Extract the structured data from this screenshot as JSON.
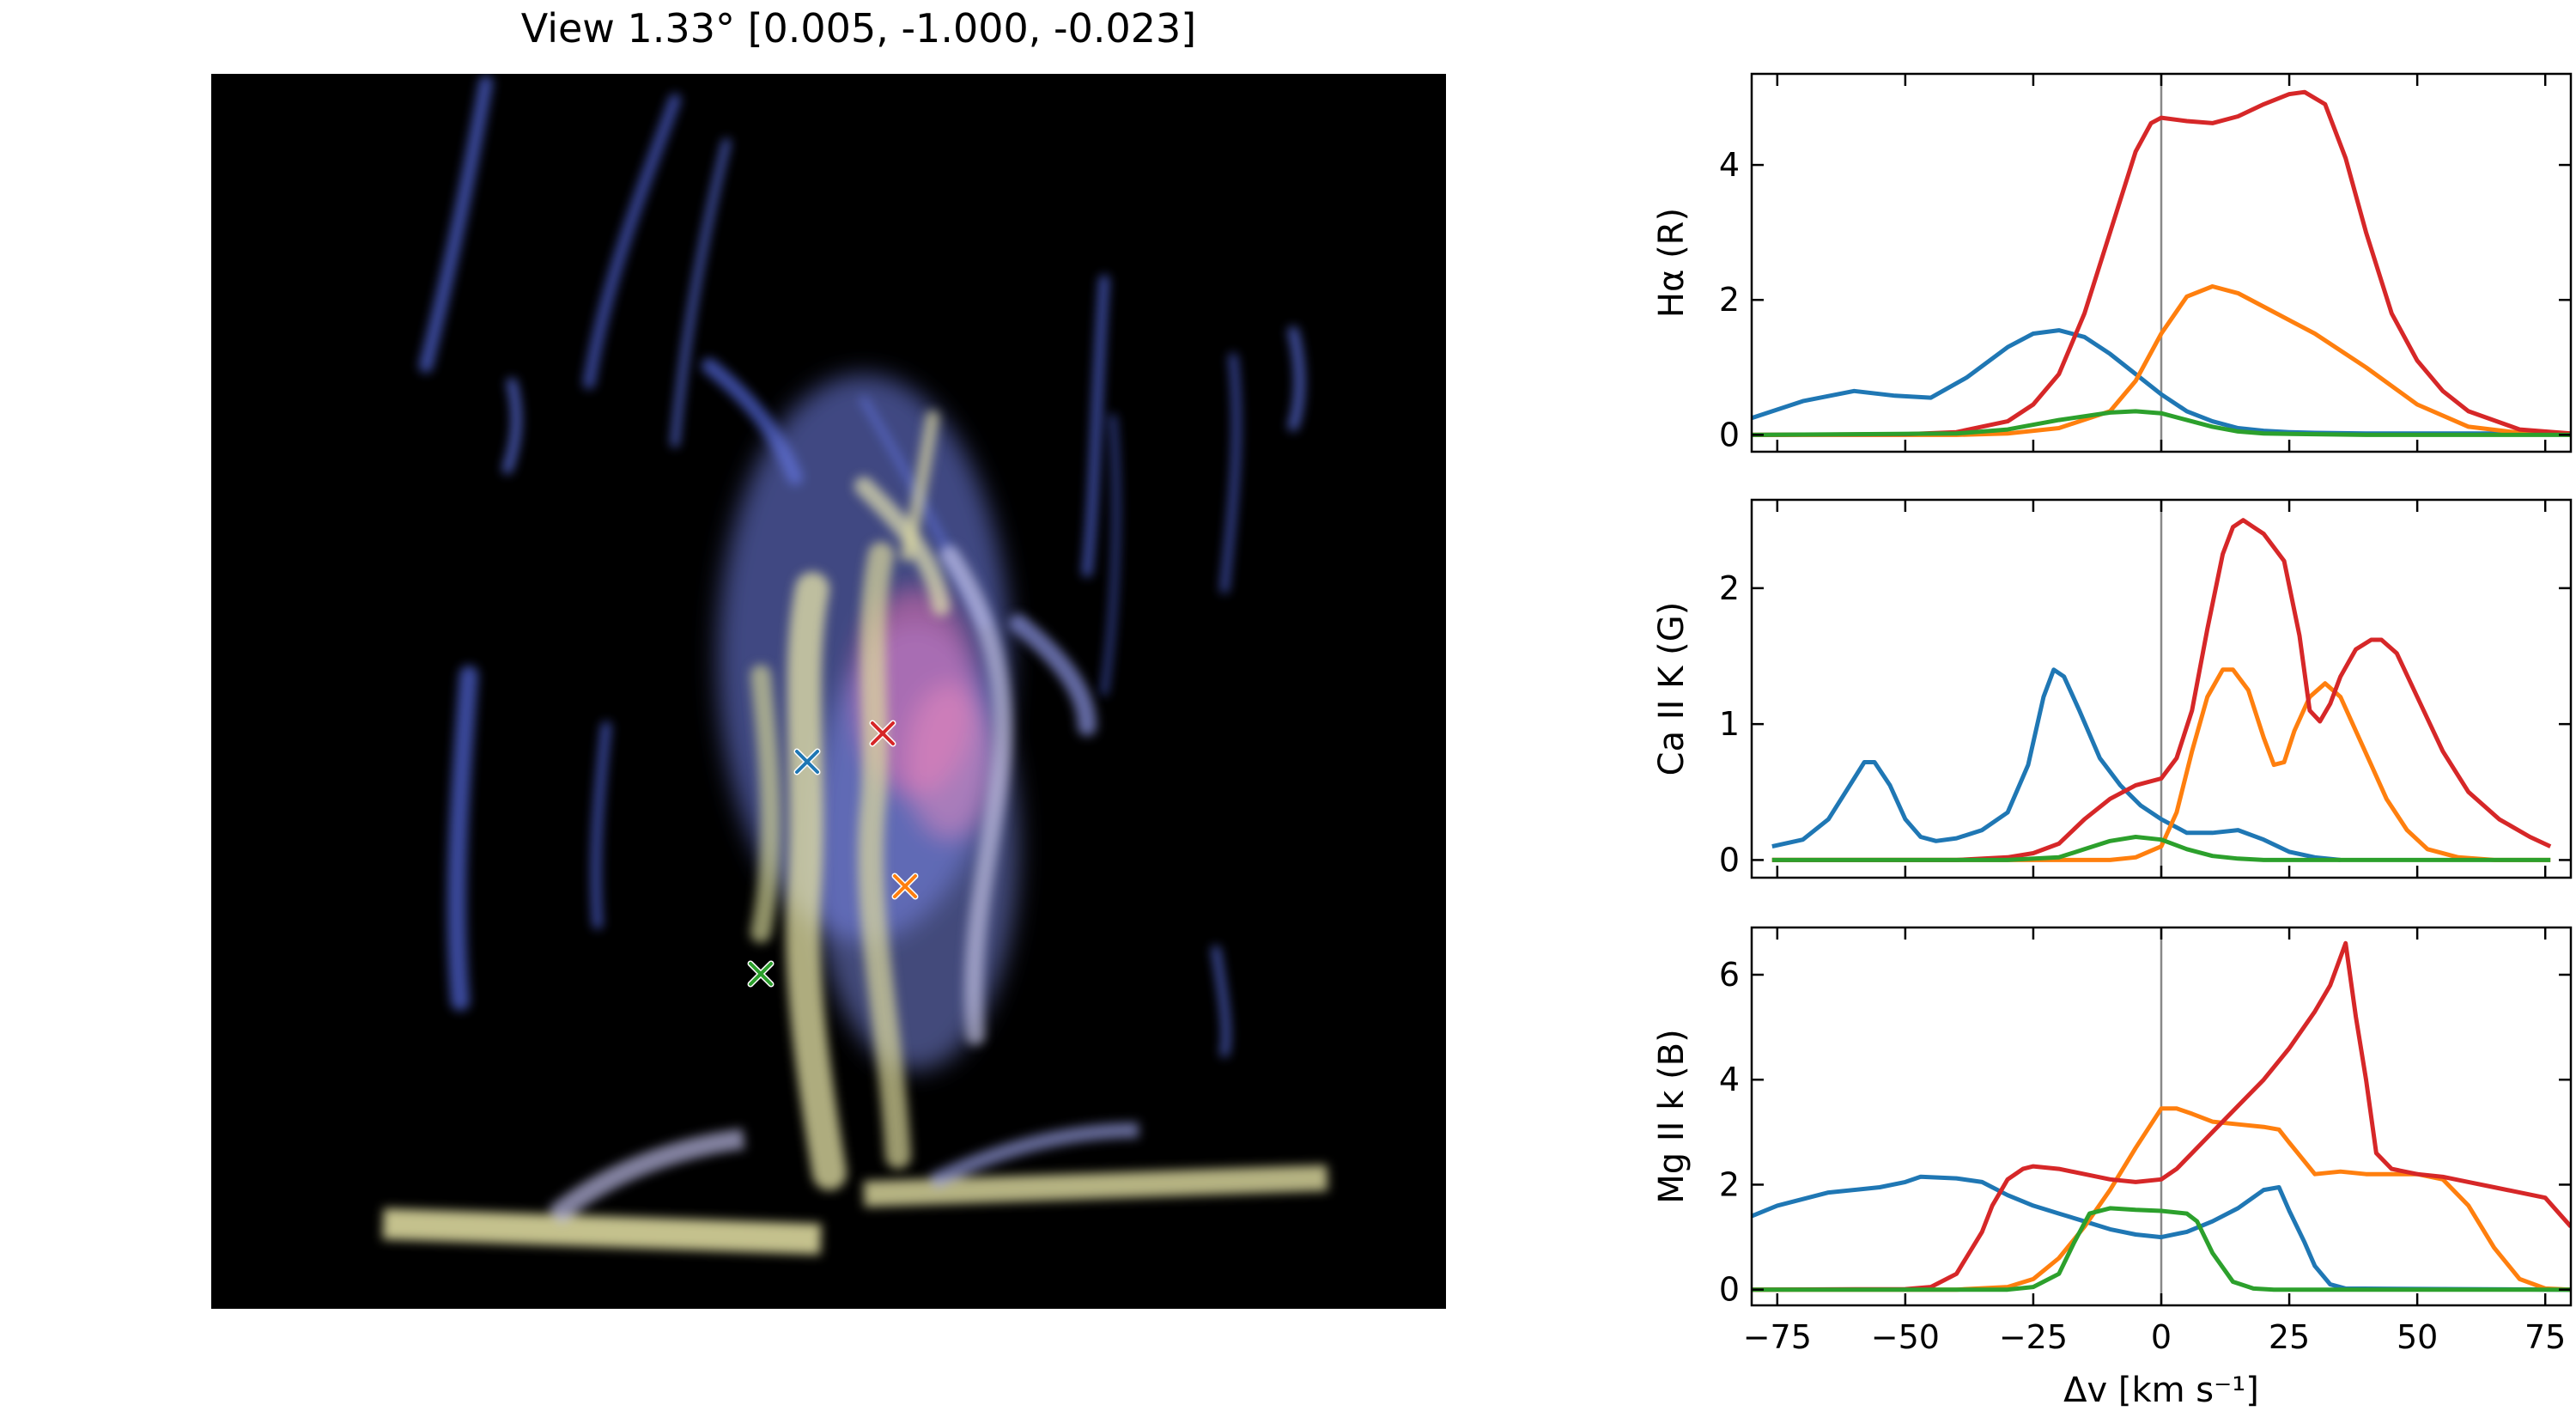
{
  "figure": {
    "title": "View 1.33° [0.005, -1.000, -0.023]"
  },
  "render": {
    "markers": [
      {
        "color": "#1f77b4",
        "label": "blue"
      },
      {
        "color": "#d62728",
        "label": "red"
      },
      {
        "color": "#ff7f0e",
        "label": "orange"
      },
      {
        "color": "#2ca02c",
        "label": "green"
      }
    ]
  },
  "chart_data": [
    {
      "type": "line",
      "ylabel": "Hα (R)",
      "xlim": [
        -80,
        80
      ],
      "ylim": [
        -0.25,
        5.35
      ],
      "yticks": [
        0,
        2,
        4
      ],
      "xticks": [
        -75,
        -50,
        -25,
        0,
        25,
        50,
        75
      ],
      "show_xticklabels": false,
      "xlabel": "",
      "series": [
        {
          "color": "#1f77b4",
          "x": [
            -80,
            -70,
            -60,
            -52,
            -45,
            -38,
            -30,
            -25,
            -20,
            -15,
            -10,
            -5,
            0,
            5,
            10,
            15,
            20,
            25,
            30,
            40,
            50,
            60,
            70,
            80
          ],
          "y": [
            0.25,
            0.5,
            0.65,
            0.58,
            0.55,
            0.85,
            1.3,
            1.5,
            1.55,
            1.45,
            1.2,
            0.9,
            0.6,
            0.35,
            0.2,
            0.1,
            0.06,
            0.04,
            0.03,
            0.02,
            0.02,
            0.02,
            0.02,
            0.02
          ]
        },
        {
          "color": "#ff7f0e",
          "x": [
            -80,
            -40,
            -30,
            -20,
            -10,
            -5,
            0,
            5,
            10,
            15,
            20,
            30,
            40,
            50,
            60,
            70,
            80
          ],
          "y": [
            0,
            0,
            0.02,
            0.1,
            0.35,
            0.8,
            1.5,
            2.05,
            2.2,
            2.1,
            1.9,
            1.5,
            1.0,
            0.45,
            0.12,
            0.03,
            0
          ]
        },
        {
          "color": "#d62728",
          "x": [
            -80,
            -50,
            -40,
            -30,
            -25,
            -20,
            -15,
            -10,
            -5,
            -2,
            0,
            5,
            10,
            15,
            20,
            25,
            28,
            32,
            36,
            40,
            45,
            50,
            55,
            60,
            70,
            80
          ],
          "y": [
            0,
            0.01,
            0.04,
            0.2,
            0.45,
            0.9,
            1.8,
            3.0,
            4.2,
            4.62,
            4.7,
            4.65,
            4.62,
            4.72,
            4.9,
            5.05,
            5.08,
            4.9,
            4.1,
            3.0,
            1.8,
            1.1,
            0.65,
            0.35,
            0.08,
            0.02
          ]
        },
        {
          "color": "#2ca02c",
          "x": [
            -80,
            -40,
            -30,
            -20,
            -10,
            -5,
            0,
            5,
            10,
            15,
            20,
            30,
            40,
            80
          ],
          "y": [
            0,
            0.02,
            0.08,
            0.22,
            0.33,
            0.35,
            0.32,
            0.22,
            0.12,
            0.05,
            0.02,
            0.01,
            0,
            0
          ]
        }
      ]
    },
    {
      "type": "line",
      "ylabel": "Ca II K (G)",
      "xlim": [
        -80,
        80
      ],
      "ylim": [
        -0.13,
        2.65
      ],
      "yticks": [
        0,
        1,
        2
      ],
      "xticks": [
        -75,
        -50,
        -25,
        0,
        25,
        50,
        75
      ],
      "show_xticklabels": false,
      "xlabel": "",
      "series": [
        {
          "color": "#1f77b4",
          "x": [
            -76,
            -70,
            -65,
            -60,
            -58,
            -56,
            -53,
            -50,
            -47,
            -44,
            -40,
            -35,
            -30,
            -26,
            -23,
            -21,
            -19,
            -16,
            -12,
            -8,
            -4,
            0,
            5,
            10,
            15,
            20,
            25,
            30,
            35
          ],
          "y": [
            0.1,
            0.15,
            0.3,
            0.6,
            0.72,
            0.72,
            0.55,
            0.3,
            0.17,
            0.14,
            0.16,
            0.22,
            0.35,
            0.7,
            1.2,
            1.4,
            1.35,
            1.1,
            0.75,
            0.55,
            0.4,
            0.3,
            0.2,
            0.2,
            0.22,
            0.15,
            0.06,
            0.02,
            0
          ]
        },
        {
          "color": "#ff7f0e",
          "x": [
            -76,
            -10,
            -5,
            0,
            3,
            6,
            9,
            12,
            14,
            17,
            20,
            22,
            24,
            26,
            29,
            32,
            35,
            38,
            41,
            44,
            48,
            52,
            58,
            65,
            76
          ],
          "y": [
            0,
            0,
            0.02,
            0.1,
            0.35,
            0.8,
            1.2,
            1.4,
            1.4,
            1.25,
            0.9,
            0.7,
            0.72,
            0.95,
            1.2,
            1.3,
            1.2,
            0.95,
            0.7,
            0.45,
            0.22,
            0.08,
            0.02,
            0,
            0
          ]
        },
        {
          "color": "#d62728",
          "x": [
            -76,
            -40,
            -30,
            -25,
            -20,
            -15,
            -10,
            -5,
            0,
            3,
            6,
            9,
            12,
            14,
            16,
            18,
            20,
            24,
            27,
            29,
            31,
            33,
            35,
            38,
            41,
            43,
            46,
            50,
            55,
            60,
            66,
            72,
            76
          ],
          "y": [
            0,
            0,
            0.02,
            0.05,
            0.12,
            0.3,
            0.45,
            0.55,
            0.6,
            0.75,
            1.1,
            1.7,
            2.25,
            2.45,
            2.5,
            2.45,
            2.4,
            2.2,
            1.65,
            1.1,
            1.02,
            1.15,
            1.35,
            1.55,
            1.62,
            1.62,
            1.52,
            1.2,
            0.8,
            0.5,
            0.3,
            0.17,
            0.1
          ]
        },
        {
          "color": "#2ca02c",
          "x": [
            -76,
            -30,
            -20,
            -15,
            -10,
            -5,
            0,
            5,
            10,
            15,
            20,
            76
          ],
          "y": [
            0,
            0,
            0.02,
            0.08,
            0.14,
            0.17,
            0.15,
            0.08,
            0.03,
            0.01,
            0,
            0
          ]
        }
      ]
    },
    {
      "type": "line",
      "ylabel": "Mg II k (B)",
      "xlim": [
        -80,
        80
      ],
      "ylim": [
        -0.3,
        6.9
      ],
      "yticks": [
        0,
        2,
        4,
        6
      ],
      "xticks": [
        -75,
        -50,
        -25,
        0,
        25,
        50,
        75
      ],
      "show_xticklabels": true,
      "xlabel": "Δv [km s⁻¹]",
      "series": [
        {
          "color": "#1f77b4",
          "x": [
            -80,
            -75,
            -65,
            -55,
            -50,
            -47,
            -40,
            -35,
            -30,
            -25,
            -20,
            -15,
            -10,
            -5,
            0,
            5,
            10,
            15,
            20,
            23,
            25,
            28,
            30,
            33,
            36,
            80
          ],
          "y": [
            1.4,
            1.6,
            1.85,
            1.95,
            2.05,
            2.15,
            2.12,
            2.05,
            1.8,
            1.6,
            1.45,
            1.3,
            1.15,
            1.05,
            1.0,
            1.1,
            1.3,
            1.55,
            1.9,
            1.95,
            1.5,
            0.9,
            0.45,
            0.1,
            0.02,
            0
          ]
        },
        {
          "color": "#ff7f0e",
          "x": [
            -80,
            -40,
            -30,
            -25,
            -20,
            -15,
            -10,
            -5,
            0,
            3,
            6,
            10,
            15,
            20,
            23,
            25,
            30,
            35,
            40,
            45,
            50,
            55,
            60,
            65,
            70,
            75,
            80
          ],
          "y": [
            0,
            0,
            0.05,
            0.2,
            0.6,
            1.2,
            1.9,
            2.7,
            3.45,
            3.45,
            3.35,
            3.2,
            3.15,
            3.1,
            3.05,
            2.8,
            2.2,
            2.25,
            2.2,
            2.2,
            2.2,
            2.1,
            1.6,
            0.8,
            0.2,
            0.02,
            0
          ]
        },
        {
          "color": "#d62728",
          "x": [
            -80,
            -50,
            -45,
            -40,
            -35,
            -33,
            -30,
            -27,
            -25,
            -20,
            -15,
            -10,
            -5,
            0,
            3,
            6,
            10,
            15,
            20,
            25,
            30,
            33,
            36,
            38,
            40,
            42,
            45,
            50,
            55,
            60,
            65,
            70,
            75,
            80
          ],
          "y": [
            0,
            0.01,
            0.05,
            0.3,
            1.1,
            1.6,
            2.1,
            2.3,
            2.35,
            2.3,
            2.2,
            2.1,
            2.05,
            2.1,
            2.3,
            2.6,
            3.0,
            3.5,
            4.0,
            4.6,
            5.3,
            5.8,
            6.6,
            5.2,
            4.0,
            2.6,
            2.3,
            2.2,
            2.15,
            2.05,
            1.95,
            1.85,
            1.75,
            1.2
          ]
        },
        {
          "color": "#2ca02c",
          "x": [
            -80,
            -30,
            -25,
            -20,
            -17,
            -14,
            -10,
            -5,
            0,
            5,
            7,
            10,
            14,
            18,
            22,
            80
          ],
          "y": [
            0,
            0,
            0.05,
            0.3,
            0.9,
            1.45,
            1.55,
            1.52,
            1.5,
            1.45,
            1.3,
            0.7,
            0.15,
            0.02,
            0,
            0
          ]
        }
      ]
    }
  ]
}
